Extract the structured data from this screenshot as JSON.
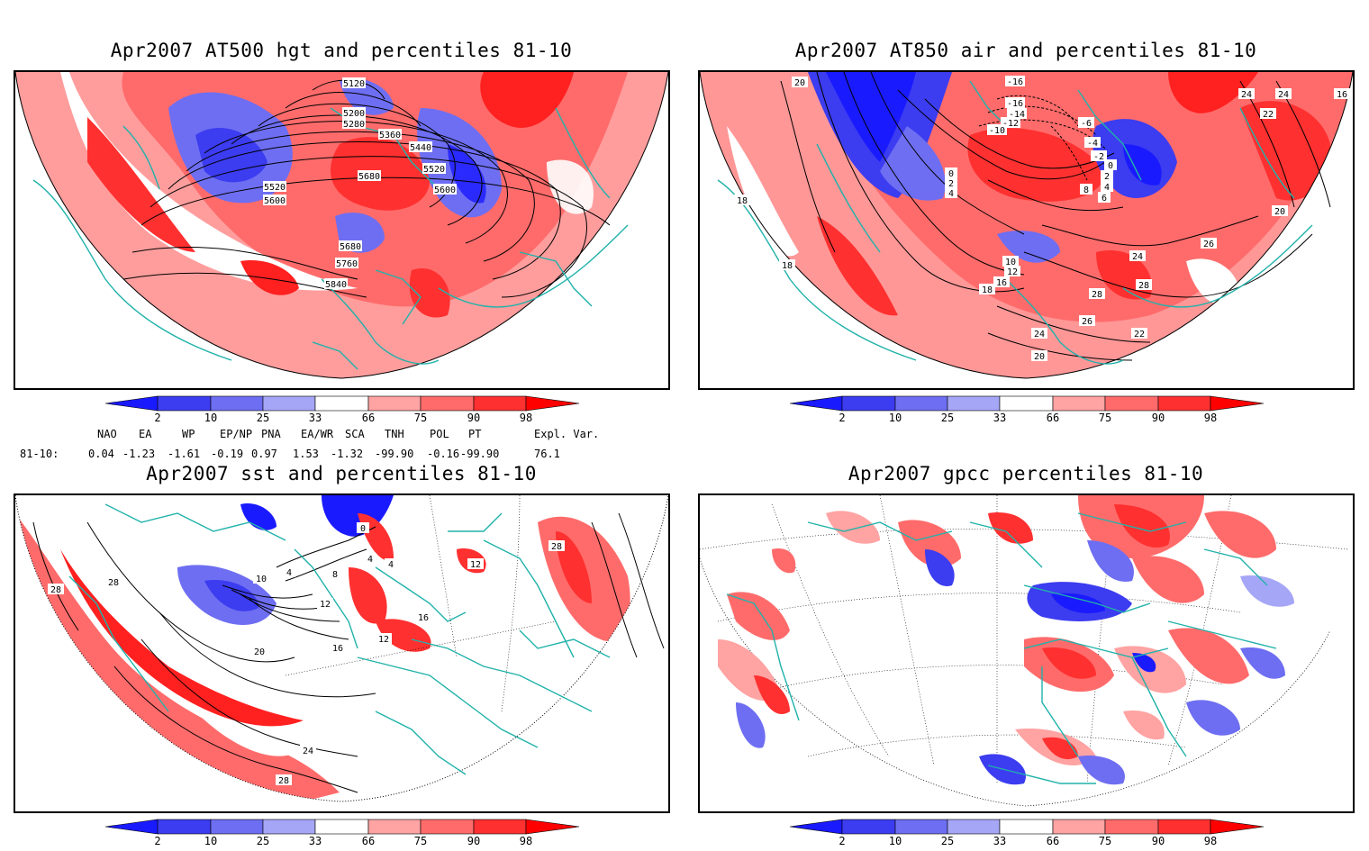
{
  "panels": [
    {
      "id": "at500",
      "title": "Apr2007 AT500 hgt and percentiles 81-10",
      "contour_labels": [
        "5120",
        "5200",
        "5280",
        "5360",
        "5440",
        "5520",
        "5600",
        "5680",
        "5520",
        "5600",
        "5680",
        "5760",
        "5840"
      ]
    },
    {
      "id": "at850",
      "title": "Apr2007 AT850 air and percentiles 81-10",
      "contour_labels": [
        "20",
        "-16",
        "-16",
        "-14",
        "-12",
        "-10",
        "-6",
        "-4",
        "-2",
        "0",
        "2",
        "4",
        "6",
        "8",
        "0",
        "2",
        "4",
        "24",
        "24",
        "22",
        "16",
        "18",
        "18",
        "20",
        "10",
        "12",
        "16",
        "18",
        "26",
        "24",
        "28",
        "28",
        "26",
        "24",
        "22",
        "20"
      ]
    },
    {
      "id": "sst",
      "title": "Apr2007 sst and percentiles 81-10",
      "contour_labels": [
        "0",
        "4",
        "8",
        "12",
        "16",
        "20",
        "24",
        "28",
        "28",
        "28",
        "28",
        "10",
        "16",
        "12",
        "4",
        "4",
        "12"
      ]
    },
    {
      "id": "gpcc",
      "title": "Apr2007 gpcc percentiles 81-10",
      "contour_labels": []
    }
  ],
  "colorbar": {
    "ticks": [
      "2",
      "10",
      "25",
      "33",
      "66",
      "75",
      "90",
      "98"
    ],
    "colors": [
      "#1a1aff",
      "#3c3cf0",
      "#6e6ef2",
      "#a6a6f7",
      "#ffffff",
      "#ffa3a3",
      "#ff6b6b",
      "#ff3030",
      "#ff0000"
    ]
  },
  "teleconnections": {
    "headers": [
      "NAO",
      "EA",
      "WP",
      "EP/NP",
      "PNA",
      "EA/WR",
      "SCA",
      "TNH",
      "POL",
      "PT",
      "Expl. Var."
    ],
    "row_label": "81-10:",
    "values": [
      "0.04",
      "-1.23",
      "-1.61",
      "-0.19",
      "0.97",
      "1.53",
      "-1.32",
      "-99.90",
      "-0.16",
      "-99.90",
      "76.1"
    ]
  },
  "colors": {
    "coast": "#20b2aa",
    "red_strong": "#ff2020",
    "red_mid": "#ff6b6b",
    "red_light": "#ffa3a3",
    "blue_strong": "#2a2aff",
    "blue_mid": "#6e6ef2",
    "blue_light": "#a6a6f7"
  }
}
